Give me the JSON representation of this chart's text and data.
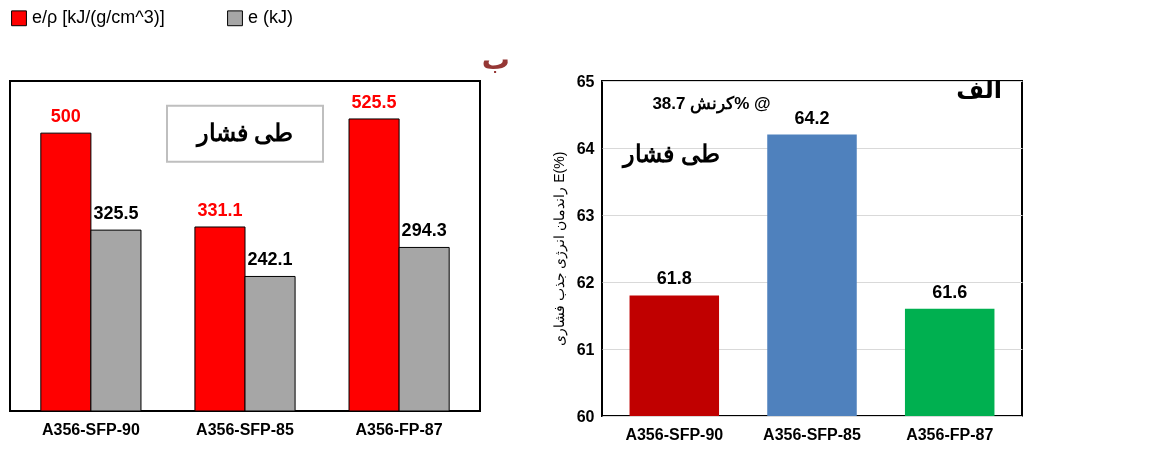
{
  "chart_data": [
    {
      "type": "bar",
      "title": "ب",
      "categories": [
        "A356-SFP-90",
        "A356-SFP-85",
        "A356-FP-87"
      ],
      "series": [
        {
          "name": "e/ρ [kJ/(g/cm^3)]",
          "color": "#ff0000",
          "values": [
            500,
            331.1,
            525.5
          ]
        },
        {
          "name": "e (kJ)",
          "color": "#a6a6a6",
          "values": [
            325.5,
            242.1,
            294.3
          ]
        }
      ],
      "data_labels": true,
      "legend": "top",
      "grid": false,
      "annotations": [
        "طی فشار"
      ]
    },
    {
      "type": "bar",
      "title": "الف",
      "categories": [
        "A356-SFP-90",
        "A356-SFP-85",
        "A356-FP-87"
      ],
      "values": [
        61.8,
        64.2,
        61.6
      ],
      "colors": [
        "#c00000",
        "#4f81bd",
        "#00b050"
      ],
      "ylabel": "راندمان انرژی جذب فشاری E(%)",
      "ylim": [
        60,
        65
      ],
      "yticks": [
        60,
        61,
        62,
        63,
        64,
        65
      ],
      "grid": "y",
      "data_labels": true,
      "annotations": [
        "کرنش 38.7% @",
        "طی فشار"
      ]
    }
  ]
}
